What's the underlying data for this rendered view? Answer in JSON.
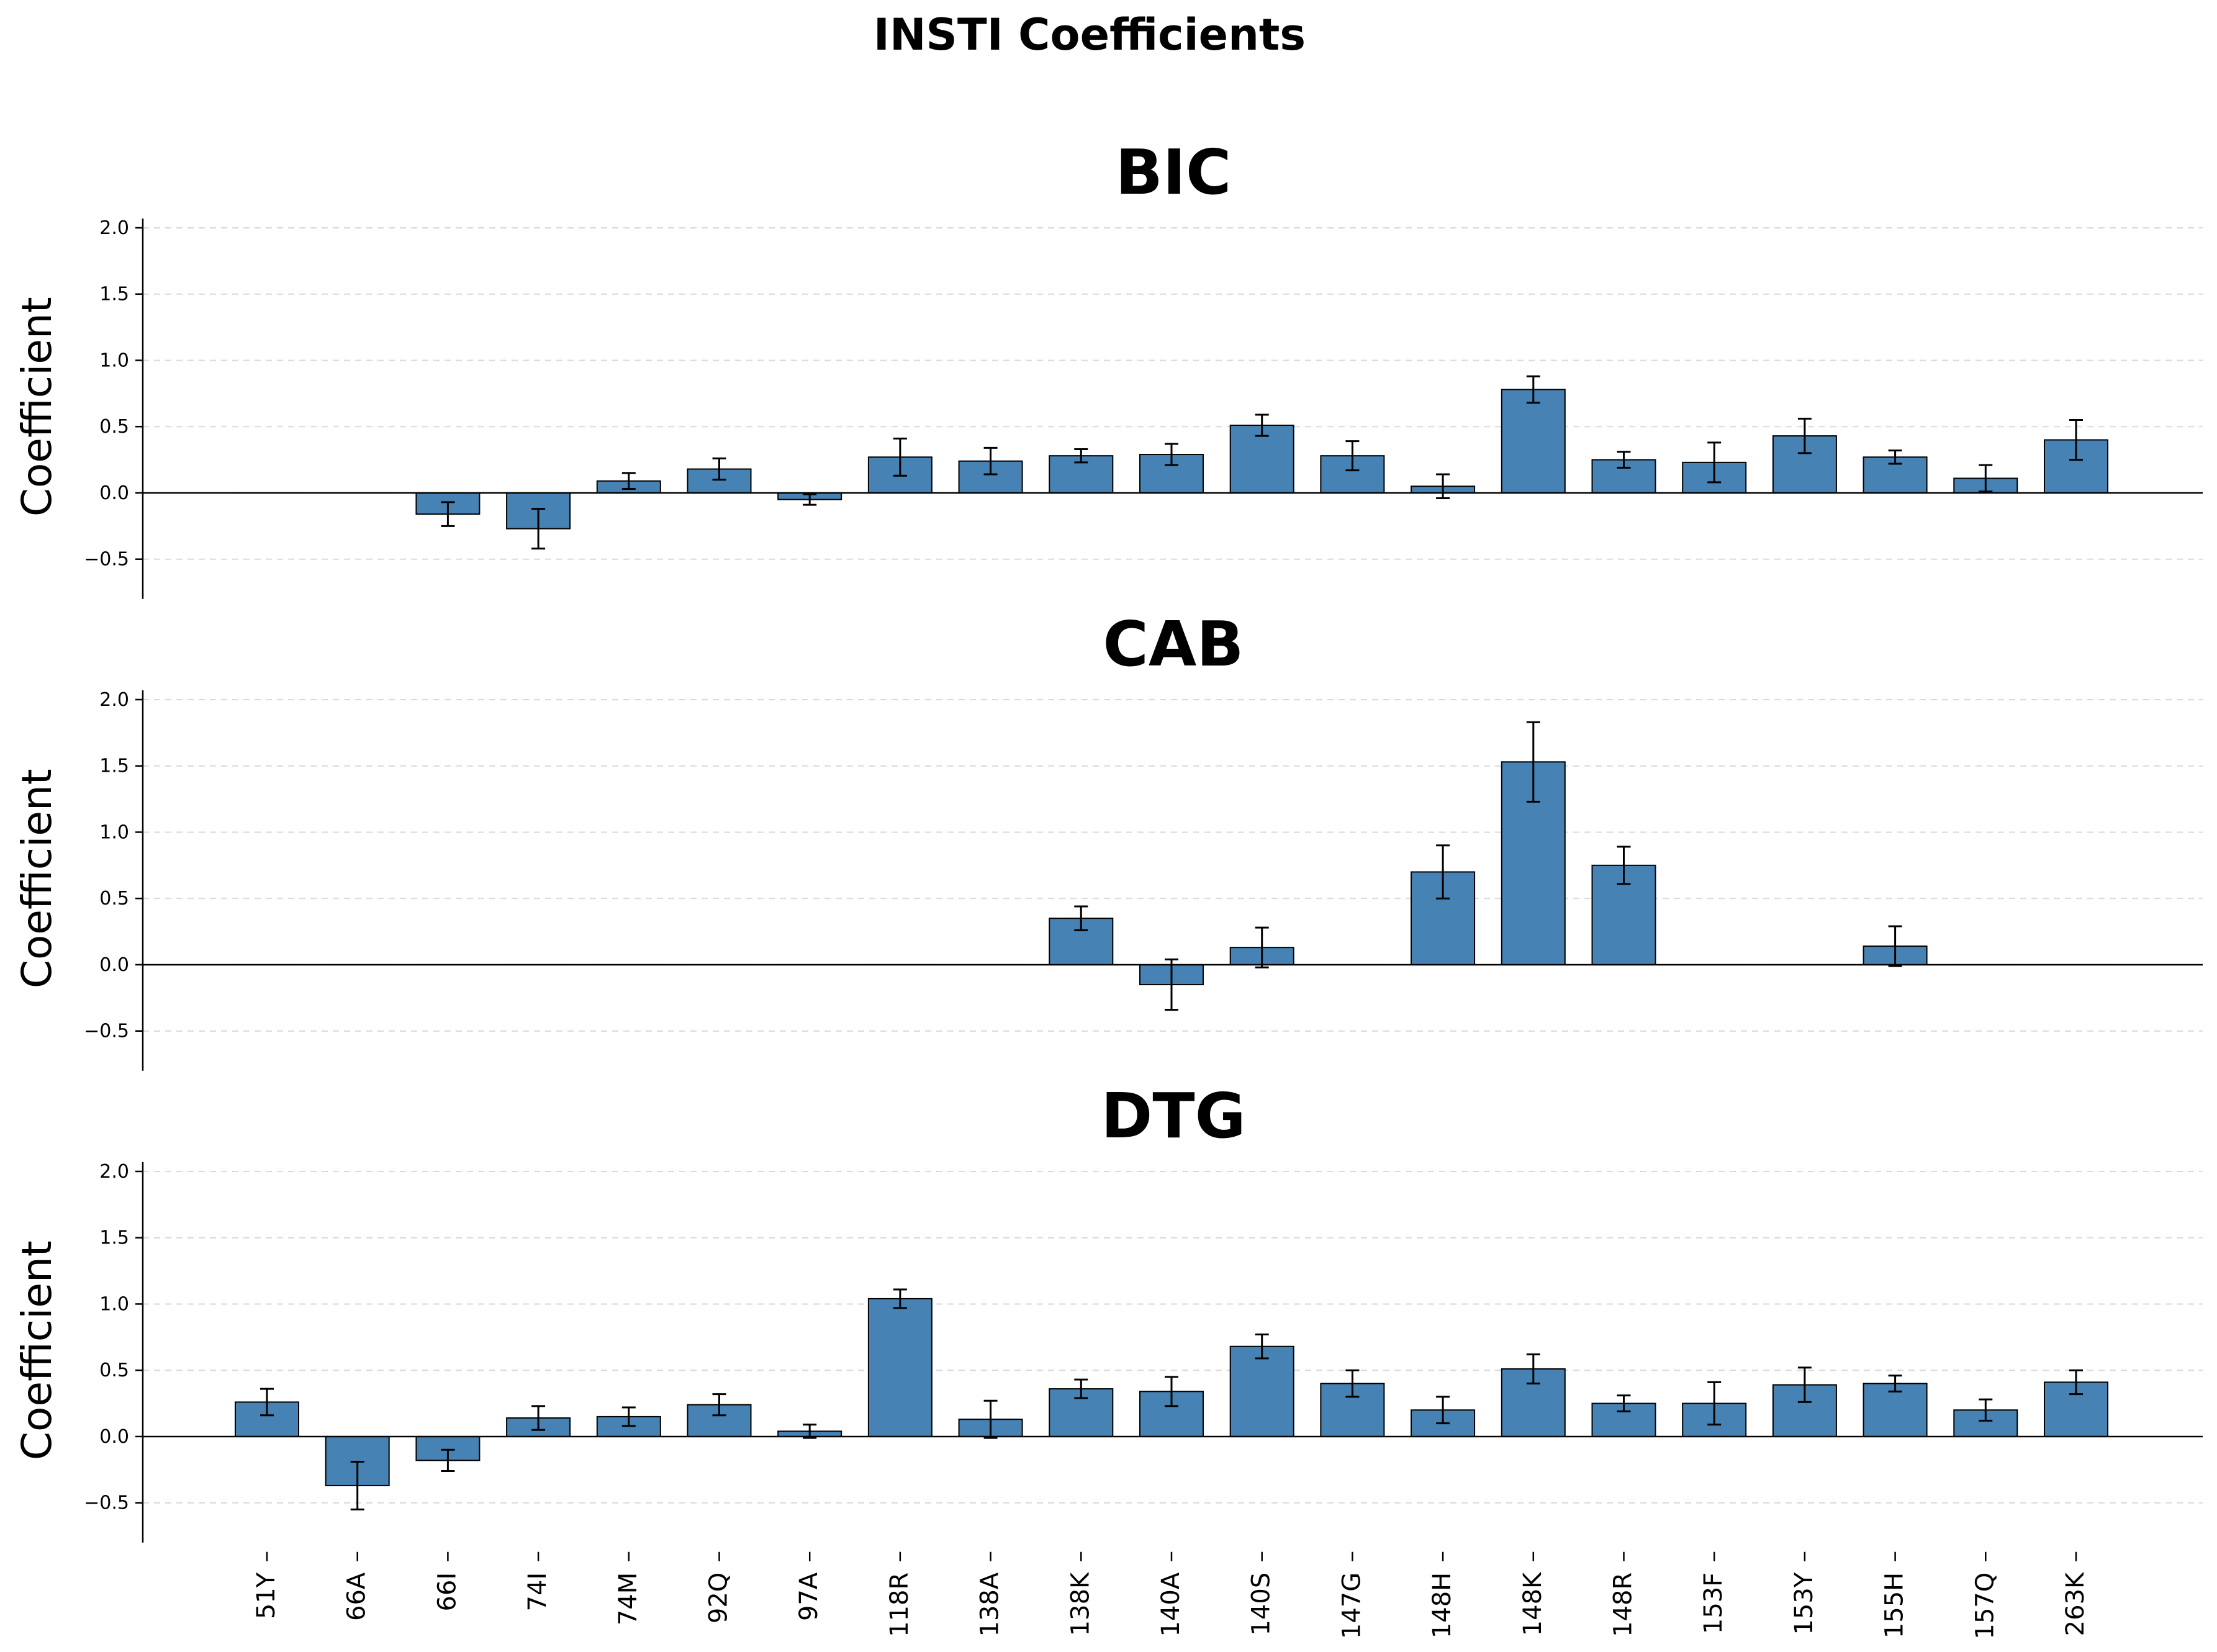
{
  "figure": {
    "suptitle": "INSTI Coefficients",
    "bar_color": "#4682b4",
    "edge_color": "#000000",
    "grid_color": "#d9d9d9"
  },
  "chart_data": [
    {
      "type": "bar",
      "title": "BIC",
      "ylabel": "Coefficient",
      "ylim": [
        -0.8,
        2.07
      ],
      "yticks": [
        -0.5,
        0.0,
        0.5,
        1.0,
        1.5,
        2.0
      ],
      "ytick_labels": [
        "−0.5",
        "0.0",
        "0.5",
        "1.0",
        "1.5",
        "2.0"
      ],
      "grid": "y-dashed",
      "categories": [
        "51Y",
        "66A",
        "66I",
        "74I",
        "74M",
        "92Q",
        "97A",
        "118R",
        "138A",
        "138K",
        "140A",
        "140S",
        "147G",
        "148H",
        "148K",
        "148R",
        "153F",
        "153Y",
        "155H",
        "157Q",
        "263K"
      ],
      "values": [
        0,
        0,
        -0.16,
        -0.27,
        0.09,
        0.18,
        -0.05,
        0.27,
        0.24,
        0.28,
        0.29,
        0.51,
        0.28,
        0.05,
        0.78,
        0.25,
        0.23,
        0.43,
        0.27,
        0.11,
        0.4
      ],
      "errors": [
        0,
        0,
        0.09,
        0.15,
        0.06,
        0.08,
        0.04,
        0.14,
        0.1,
        0.05,
        0.08,
        0.08,
        0.11,
        0.09,
        0.1,
        0.06,
        0.15,
        0.13,
        0.05,
        0.1,
        0.15
      ]
    },
    {
      "type": "bar",
      "title": "CAB",
      "ylabel": "Coefficient",
      "ylim": [
        -0.8,
        2.07
      ],
      "yticks": [
        -0.5,
        0.0,
        0.5,
        1.0,
        1.5,
        2.0
      ],
      "ytick_labels": [
        "−0.5",
        "0.0",
        "0.5",
        "1.0",
        "1.5",
        "2.0"
      ],
      "grid": "y-dashed",
      "categories": [
        "51Y",
        "66A",
        "66I",
        "74I",
        "74M",
        "92Q",
        "97A",
        "118R",
        "138A",
        "138K",
        "140A",
        "140S",
        "147G",
        "148H",
        "148K",
        "148R",
        "153F",
        "153Y",
        "155H",
        "157Q",
        "263K"
      ],
      "values": [
        0,
        0,
        0,
        0,
        0,
        0,
        0,
        0,
        0,
        0.35,
        -0.15,
        0.13,
        0,
        0.7,
        1.53,
        0.75,
        0,
        0,
        0.14,
        0,
        0
      ],
      "errors": [
        0,
        0,
        0,
        0,
        0,
        0,
        0,
        0,
        0,
        0.09,
        0.19,
        0.15,
        0,
        0.2,
        0.3,
        0.14,
        0,
        0,
        0.15,
        0,
        0
      ]
    },
    {
      "type": "bar",
      "title": "DTG",
      "ylabel": "Coefficient",
      "ylim": [
        -0.8,
        2.07
      ],
      "yticks": [
        -0.5,
        0.0,
        0.5,
        1.0,
        1.5,
        2.0
      ],
      "ytick_labels": [
        "−0.5",
        "0.0",
        "0.5",
        "1.0",
        "1.5",
        "2.0"
      ],
      "grid": "y-dashed",
      "categories": [
        "51Y",
        "66A",
        "66I",
        "74I",
        "74M",
        "92Q",
        "97A",
        "118R",
        "138A",
        "138K",
        "140A",
        "140S",
        "147G",
        "148H",
        "148K",
        "148R",
        "153F",
        "153Y",
        "155H",
        "157Q",
        "263K"
      ],
      "values": [
        0.26,
        -0.37,
        -0.18,
        0.14,
        0.15,
        0.24,
        0.04,
        1.04,
        0.13,
        0.36,
        0.34,
        0.68,
        0.4,
        0.2,
        0.51,
        0.25,
        0.25,
        0.39,
        0.4,
        0.2,
        0.41
      ],
      "errors": [
        0.1,
        0.18,
        0.08,
        0.09,
        0.07,
        0.08,
        0.05,
        0.07,
        0.14,
        0.07,
        0.11,
        0.09,
        0.1,
        0.1,
        0.11,
        0.06,
        0.16,
        0.13,
        0.06,
        0.08,
        0.09
      ]
    }
  ]
}
